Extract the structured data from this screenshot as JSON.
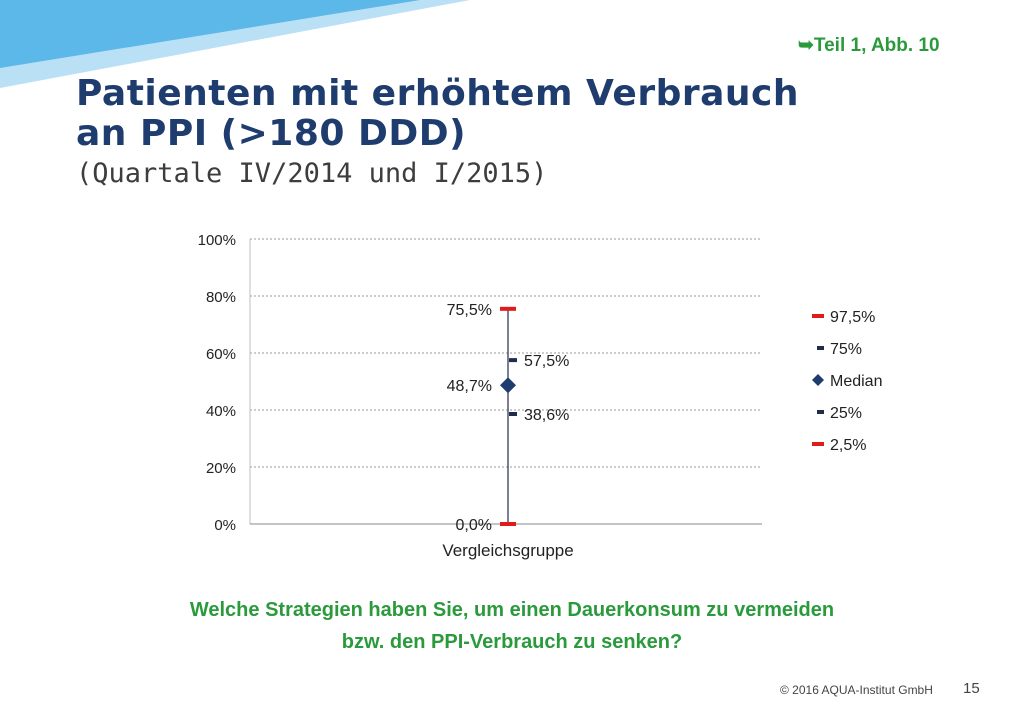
{
  "slide": {
    "reference": "➥Teil 1, Abb. 10",
    "title_line1": "Patienten mit erhöhtem Verbrauch",
    "title_line2": "an PPI (>180 DDD)",
    "subtitle": "(Quartale IV/2014 und I/2015)",
    "question_line1": "Welche Strategien haben Sie, um einen Dauerkonsum zu vermeiden",
    "question_line2": "bzw. den PPI-Verbrauch zu senken?",
    "copyright": "© 2016 AQUA-Institut GmbH",
    "page_number": "15"
  },
  "colors": {
    "title": "#1f3c6e",
    "green_text": "#2a9a3c",
    "percentile_2_5_97_5": "#e01b1b",
    "percentile_25_75": "#1f2d4a",
    "median": "#1f3c6e",
    "corner_blue": "#5bb8e8",
    "corner_light": "#b9e0f5"
  },
  "chart_data": {
    "type": "scatter",
    "categories": [
      "Vergleichsgruppe"
    ],
    "ylim": [
      0,
      100
    ],
    "yticks": [
      "0%",
      "20%",
      "40%",
      "60%",
      "80%",
      "100%"
    ],
    "grid": true,
    "legend_position": "right",
    "series": [
      {
        "name": "97,5%",
        "marker": "red-dash",
        "values": [
          75.5
        ],
        "label": "75,5%",
        "label_side": "left"
      },
      {
        "name": "75%",
        "marker": "dark-dash",
        "values": [
          57.5
        ],
        "label": "57,5%",
        "label_side": "right"
      },
      {
        "name": "Median",
        "marker": "diamond",
        "values": [
          48.7
        ],
        "label": "48,7%",
        "label_side": "left"
      },
      {
        "name": "25%",
        "marker": "dark-dash",
        "values": [
          38.6
        ],
        "label": "38,6%",
        "label_side": "right"
      },
      {
        "name": "2,5%",
        "marker": "red-dash",
        "values": [
          0.0
        ],
        "label": "0,0%",
        "label_side": "left"
      }
    ]
  }
}
